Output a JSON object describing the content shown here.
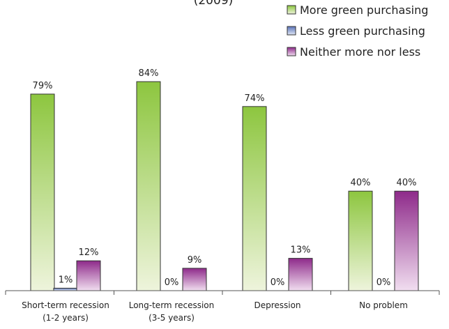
{
  "chart_data": {
    "type": "bar",
    "title": "(2009)",
    "categories": [
      [
        "Short-term recession",
        "(1-2 years)"
      ],
      [
        "Long-term recession",
        "(3-5 years)"
      ],
      [
        "Depression"
      ],
      [
        "No problem"
      ]
    ],
    "series": [
      {
        "name": "More green purchasing",
        "values": [
          79,
          84,
          74,
          40
        ],
        "labels": [
          "79%",
          "84%",
          "74%",
          "40%"
        ],
        "color": "#8dc63f"
      },
      {
        "name": "Less green purchasing",
        "values": [
          1,
          0,
          0,
          0
        ],
        "labels": [
          "1%",
          "0%",
          "0%",
          "0%"
        ],
        "color": "#5b73b8"
      },
      {
        "name": "Neither more nor less",
        "values": [
          12,
          9,
          13,
          40
        ],
        "labels": [
          "12%",
          "9%",
          "13%",
          "40%"
        ],
        "color": "#8e2a8a"
      }
    ],
    "ylim": [
      0,
      100
    ],
    "grid": false,
    "legend": "top-right",
    "xlabel": "",
    "ylabel": ""
  }
}
